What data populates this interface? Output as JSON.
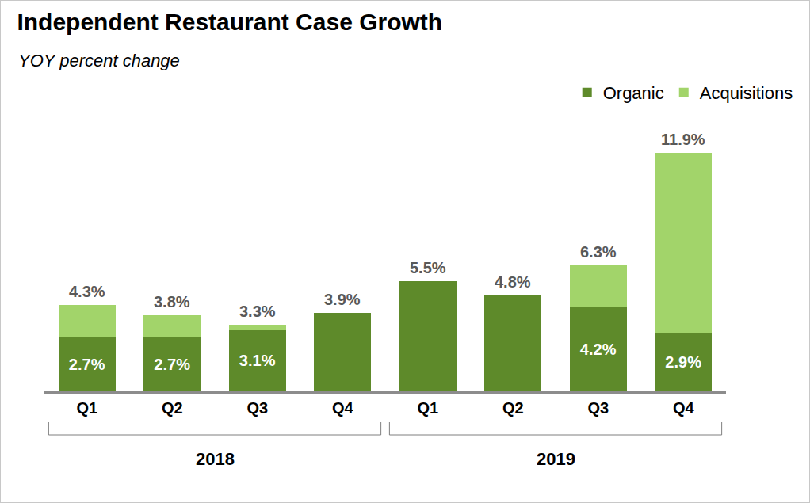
{
  "chart_data": {
    "type": "bar",
    "title": "Independent Restaurant Case Growth",
    "subtitle": "YOY percent change",
    "categories": [
      "Q1",
      "Q2",
      "Q3",
      "Q4",
      "Q1",
      "Q2",
      "Q3",
      "Q4"
    ],
    "group_labels": [
      "2018",
      "2018",
      "2018",
      "2018",
      "2019",
      "2019",
      "2019",
      "2019"
    ],
    "series": [
      {
        "name": "Organic",
        "color": "#5e8a2a",
        "values": [
          2.7,
          2.7,
          3.1,
          3.9,
          5.5,
          4.8,
          4.2,
          2.9
        ],
        "value_labels": [
          "2.7%",
          "2.7%",
          "3.1%",
          null,
          null,
          null,
          "4.2%",
          "2.9%"
        ]
      },
      {
        "name": "Acquisitions",
        "color": "#a2d46a",
        "values": [
          1.6,
          1.1,
          0.2,
          null,
          null,
          null,
          2.1,
          9.0
        ]
      }
    ],
    "totals": [
      4.3,
      3.8,
      3.3,
      3.9,
      5.5,
      4.8,
      6.3,
      11.9
    ],
    "total_labels": [
      "4.3%",
      "3.8%",
      "3.3%",
      "3.9%",
      "5.5%",
      "4.8%",
      "6.3%",
      "11.9%"
    ],
    "ylim": [
      0,
      13
    ],
    "yticks": [],
    "stacked": true,
    "data_labels": true,
    "tick_labels": "x",
    "grid": false,
    "legend": "upper right"
  }
}
